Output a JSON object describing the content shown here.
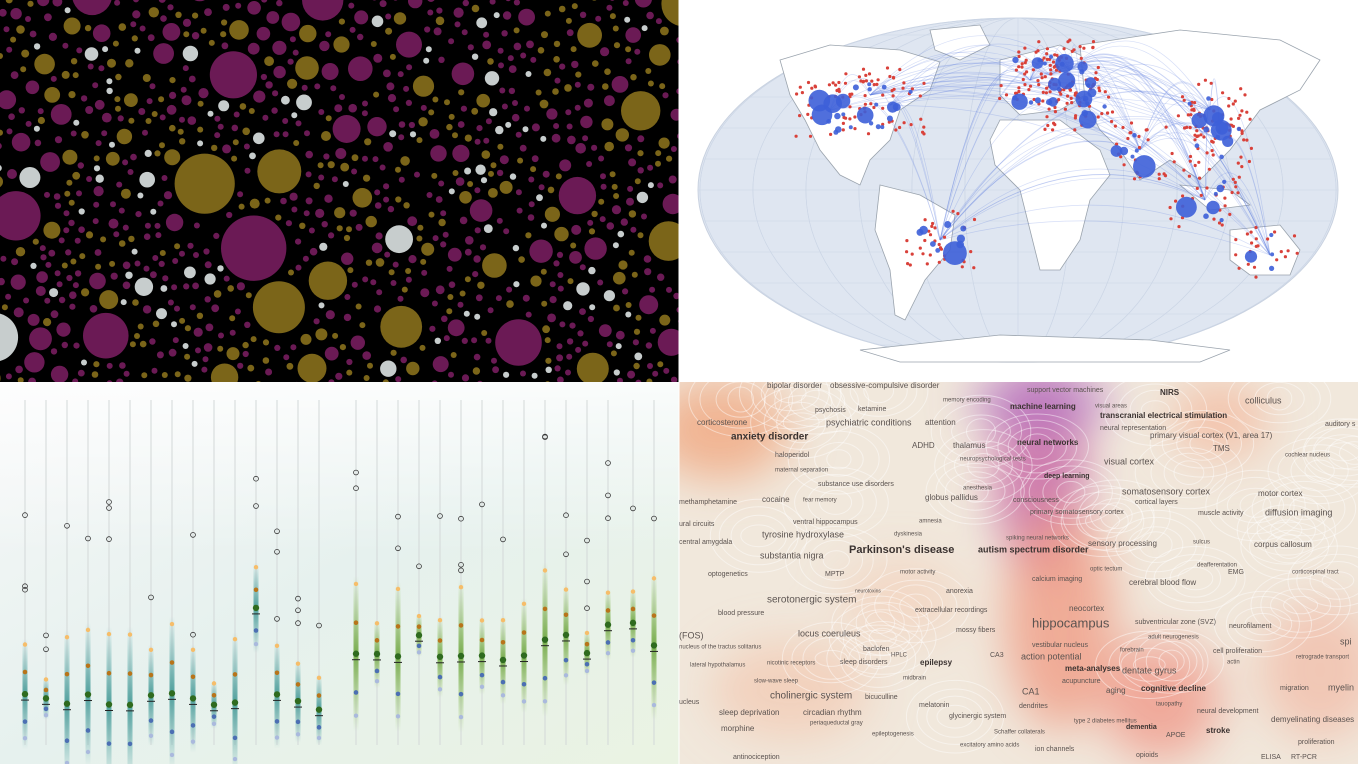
{
  "word_cloud": {
    "terms": [
      "bipolar disorder",
      "obsessive-compulsive disorder",
      "support vector machines",
      "NIRS",
      "colliculus",
      "memory encoding",
      "visual areas",
      "psychosis",
      "ketamine",
      "machine learning",
      "transcranial electrical stimulation",
      "corticosterone",
      "psychiatric conditions",
      "attention",
      "neural representation",
      "auditory s",
      "anxiety disorder",
      "primary visual cortex (V1, area 17)",
      "ADHD",
      "thalamus",
      "neural networks",
      "TMS",
      "haloperidol",
      "neuropsychological tests",
      "cochlear nucleus",
      "visual cortex",
      "maternal separation",
      "deep learning",
      "substance use disorders",
      "anesthesia",
      "somatosensory cortex",
      "motor cortex",
      "methamphetamine",
      "cocaine",
      "fear memory",
      "globus pallidus",
      "consciousness",
      "cortical layers",
      "primary somatosensory cortex",
      "muscle activity",
      "diffusion imaging",
      "ural circuits",
      "ventral hippocampus",
      "amnesia",
      "tyrosine hydroxylase",
      "dyskinesia",
      "spiking neural networks",
      "sulcus",
      "central amygdala",
      "Parkinson's disease",
      "autism spectrum disorder",
      "sensory processing",
      "corpus callosum",
      "substantia nigra",
      "optic tectum",
      "deafferentation",
      "optogenetics",
      "MPTP",
      "motor activity",
      "calcium imaging",
      "cerebral blood flow",
      "EMG",
      "corticospinal tract",
      "neurotoxins",
      "anorexia",
      "serotonergic system",
      "extracellular recordings",
      "neocortex",
      "blood pressure",
      "hippocampus",
      "subventricular zone (SVZ)",
      "neurofilament",
      "(FOS)",
      "locus coeruleus",
      "mossy fibers",
      "adult neurogenesis",
      "spi",
      "nucleus of the tractus solitarius",
      "baclofen",
      "HPLC",
      "vestibular nucleus",
      "forebrain",
      "cell proliferation",
      "CA3",
      "action potential",
      "retrograde transport",
      "lateral hypothalamus",
      "nicotinic receptors",
      "sleep disorders",
      "epilepsy",
      "actin",
      "meta-analyses",
      "dentate gyrus",
      "midbrain",
      "acupuncture",
      "slow-wave sleep",
      "cholinergic system",
      "bicuculline",
      "CA1",
      "aging",
      "cognitive decline",
      "migration",
      "myelin",
      "dendrites",
      "type 2 diabetes mellitus",
      "tauopathy",
      "ucleus",
      "melatonin",
      "neural development",
      "demyelinating diseases",
      "sleep deprivation",
      "circadian rhythm",
      "glycinergic system",
      "dementia",
      "stroke",
      "morphine",
      "periaqueductal gray",
      "Schaffer collaterals",
      "APOE",
      "epileptogenesis",
      "proliferation",
      "excitatory amino acids",
      "ion channels",
      "ELISA",
      "RT-PCR",
      "antinociception",
      "opioids"
    ]
  }
}
